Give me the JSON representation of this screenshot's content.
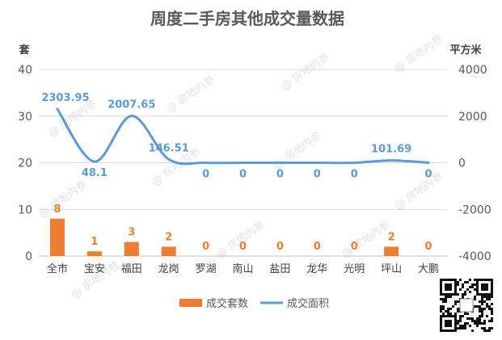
{
  "colors": {
    "bar": "#ED7D31",
    "line": "#5B9BD5",
    "axis_text": "#595959",
    "grid": "#d9d9d9"
  },
  "watermark": "房地内参",
  "icons": [
    "qr-code-icon"
  ],
  "chart_data": {
    "type": "bar",
    "title": "周度二手房其他成交量数据",
    "categories": [
      "全市",
      "宝安",
      "福田",
      "龙岗",
      "罗湖",
      "南山",
      "盐田",
      "龙华",
      "光明",
      "坪山",
      "大鹏"
    ],
    "series": [
      {
        "name": "成交套数",
        "type": "bar",
        "axis": "left",
        "values": [
          8,
          1,
          3,
          2,
          0,
          0,
          0,
          0,
          0,
          2,
          0
        ],
        "labels": [
          "8",
          "1",
          "3",
          "2",
          "0",
          "0",
          "0",
          "0",
          "0",
          "2",
          "0"
        ]
      },
      {
        "name": "成交面积",
        "type": "line",
        "axis": "right",
        "smooth": true,
        "values": [
          2303.95,
          48.1,
          2007.65,
          146.51,
          0,
          0,
          0,
          0,
          0,
          101.69,
          0
        ],
        "labels": [
          "2303.95",
          "48.1",
          "2007.65",
          "146.51",
          "0",
          "0",
          "0",
          "0",
          "0",
          "101.69",
          "0"
        ]
      }
    ],
    "ylabel": "套",
    "ylabel_right": "平方米",
    "ylim": [
      0,
      40
    ],
    "yticks": [
      0,
      10,
      20,
      30,
      40
    ],
    "ylim_right": [
      -4000,
      4000
    ],
    "yticks_right": [
      -4000,
      -2000,
      0,
      2000,
      4000
    ],
    "grid": true,
    "legend_position": "bottom"
  }
}
